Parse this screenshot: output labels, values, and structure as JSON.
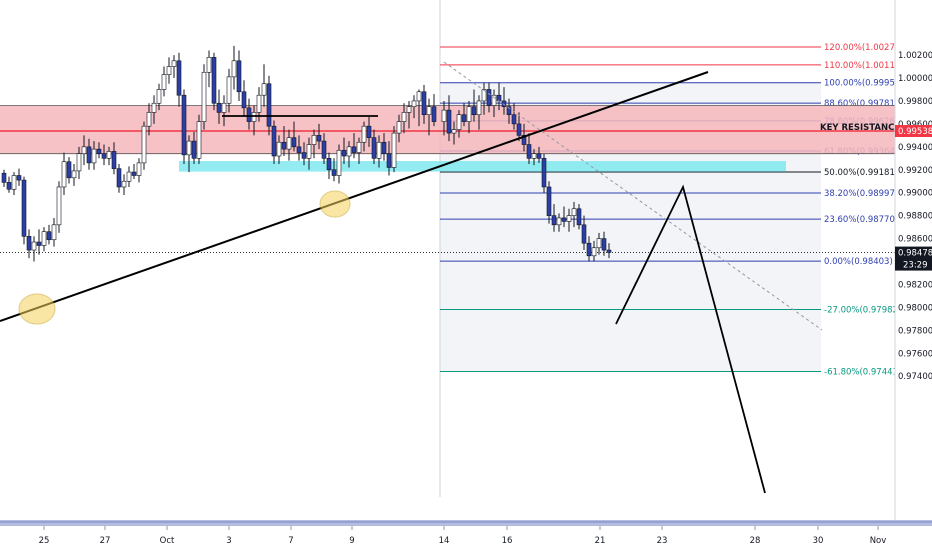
{
  "chart_data": {
    "type": "candlestick",
    "title": "",
    "y_range": [
      0.973,
      1.003
    ],
    "y_ticks": [
      "1.00200",
      "1.00000",
      "0.99800",
      "0.99600",
      "0.99400",
      "0.99200",
      "0.99000",
      "0.98800",
      "0.98600",
      "0.98200",
      "0.98000",
      "0.97800",
      "0.97600",
      "0.97400"
    ],
    "x_ticks": [
      "25",
      "27",
      "Oct",
      "3",
      "7",
      "9",
      "14",
      "16",
      "21",
      "23",
      "28",
      "30",
      "Nov"
    ],
    "current_price": {
      "label": "0.98478",
      "value": 0.98478
    },
    "timer": "23:29",
    "key_resistance": {
      "label": "KEY RESISTANCE",
      "price_label": "0.99538",
      "value": 0.99538
    },
    "resistance_zone": [
      0.9934,
      0.9976
    ],
    "support_zone": [
      0.9921,
      0.9925
    ],
    "fib_levels": [
      {
        "label": "120.00%(1.00270)",
        "value": 1.0027,
        "color": "#f23645"
      },
      {
        "label": "110.00%(1.00114)",
        "value": 1.00114,
        "color": "#f23645"
      },
      {
        "label": "100.00%(0.99959)",
        "value": 0.99959,
        "color": "#2f3fb0"
      },
      {
        "label": "88.60%(0.99781)",
        "value": 0.99781,
        "color": "#2f3fb0"
      },
      {
        "label": "78.60%(0.99626)",
        "value": 0.99626,
        "color": "#2f3fb0"
      },
      {
        "label": "61.80%(0.99364)",
        "value": 0.99364,
        "color": "#2f3fb0"
      },
      {
        "label": "50.00%(0.99181)",
        "value": 0.99181,
        "color": "#131722"
      },
      {
        "label": "38.20%(0.98997)",
        "value": 0.98997,
        "color": "#2f3fb0"
      },
      {
        "label": "23.60%(0.98770)",
        "value": 0.9877,
        "color": "#2f3fb0"
      },
      {
        "label": "0.00%(0.98403)",
        "value": 0.98403,
        "color": "#2f3fb0"
      },
      {
        "label": "-27.00%(0.97982)",
        "value": 0.97982,
        "color": "#089981"
      },
      {
        "label": "-61.80%(0.97441)",
        "value": 0.97441,
        "color": "#089981"
      }
    ],
    "colors": {
      "up": "#ffffff",
      "down": "#2b3fa8",
      "wick": "#131722",
      "resistance": "#f23645",
      "support": "#7fe9ef"
    }
  }
}
